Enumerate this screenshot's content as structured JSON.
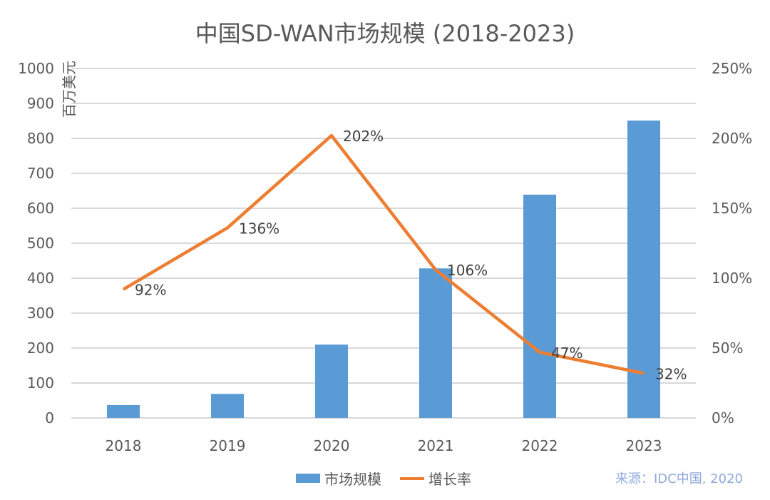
{
  "chart_data": {
    "type": "bar+line",
    "title": "中国SD-WAN市场规模 (2018-2023)",
    "categories": [
      "2018",
      "2019",
      "2020",
      "2021",
      "2022",
      "2023"
    ],
    "series": [
      {
        "name": "市场规模",
        "type": "bar",
        "axis": "left",
        "values": [
          37,
          69,
          210,
          428,
          639,
          851
        ],
        "color": "#5b9bd5"
      },
      {
        "name": "增长率",
        "type": "line",
        "axis": "right",
        "values": [
          92,
          136,
          202,
          106,
          47,
          32
        ],
        "labels": [
          "92%",
          "136%",
          "202%",
          "106%",
          "47%",
          "32%"
        ],
        "color": "#ed7d31"
      }
    ],
    "ylabel": "百万美元",
    "ylim": [
      0,
      1000
    ],
    "yticks": [
      "0",
      "100",
      "200",
      "300",
      "400",
      "500",
      "600",
      "700",
      "800",
      "900",
      "1000"
    ],
    "y2lim": [
      0,
      250
    ],
    "y2ticks": [
      "0%",
      "50%",
      "100%",
      "150%",
      "200%",
      "250%"
    ],
    "grid": true,
    "legend_position": "bottom",
    "source": "来源：IDC中国, 2020"
  }
}
